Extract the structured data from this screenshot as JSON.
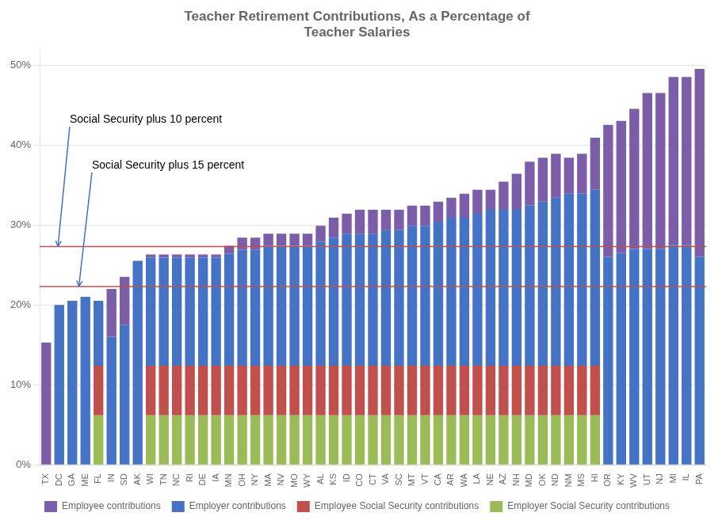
{
  "chart_data": {
    "type": "bar",
    "title": "Teacher Retirement Contributions, As a Percentage of\nTeacher Salaries",
    "categories": [
      "TX",
      "DC",
      "GA",
      "ME",
      "FL",
      "IN",
      "SD",
      "AK",
      "WI",
      "TN",
      "NC",
      "RI",
      "DE",
      "IA",
      "MN",
      "OH",
      "NY",
      "MA",
      "NV",
      "MO",
      "WY",
      "AL",
      "KS",
      "ID",
      "CO",
      "CT",
      "VA",
      "SC",
      "MT",
      "VT",
      "CA",
      "AR",
      "WA",
      "LA",
      "NE",
      "AZ",
      "NH",
      "MD",
      "OK",
      "ND",
      "NM",
      "MS",
      "HI",
      "OR",
      "KY",
      "WV",
      "UT",
      "NJ",
      "MI",
      "IL",
      "PA"
    ],
    "stacked": true,
    "series": [
      {
        "name": "Employer Social Security contributions",
        "color": "#9bbb59",
        "values": [
          0.0,
          0.0,
          0.0,
          0.0,
          6.2,
          0.0,
          0.0,
          0.0,
          6.2,
          6.2,
          6.2,
          6.2,
          6.2,
          6.2,
          6.2,
          6.2,
          6.2,
          6.2,
          6.2,
          6.2,
          6.2,
          6.2,
          6.2,
          6.2,
          6.2,
          6.2,
          6.2,
          6.2,
          6.2,
          6.2,
          6.2,
          6.2,
          6.2,
          6.2,
          6.2,
          6.2,
          6.2,
          6.2,
          6.2,
          6.2,
          6.2,
          6.2,
          6.2,
          0.0,
          0.0,
          0.0,
          0.0,
          0.0,
          0.0,
          0.0,
          0.0
        ]
      },
      {
        "name": "Employee Social Security contributions",
        "color": "#c0504d",
        "values": [
          0.0,
          0.0,
          0.0,
          0.0,
          6.2,
          0.0,
          0.0,
          0.0,
          6.2,
          6.2,
          6.2,
          6.2,
          6.2,
          6.2,
          6.2,
          6.2,
          6.2,
          6.2,
          6.2,
          6.2,
          6.2,
          6.2,
          6.2,
          6.2,
          6.2,
          6.2,
          6.2,
          6.2,
          6.2,
          6.2,
          6.2,
          6.2,
          6.2,
          6.2,
          6.2,
          6.2,
          6.2,
          6.2,
          6.2,
          6.2,
          6.2,
          6.2,
          6.2,
          0.0,
          0.0,
          0.0,
          0.0,
          0.0,
          0.0,
          0.0,
          0.0
        ]
      },
      {
        "name": "Employer contributions",
        "color": "#4472c4",
        "values": [
          0.0,
          20.0,
          20.5,
          21.0,
          8.1,
          16.0,
          17.5,
          25.5,
          13.5,
          13.5,
          13.5,
          13.5,
          13.5,
          13.5,
          14.0,
          14.5,
          14.5,
          15.0,
          15.0,
          15.0,
          15.0,
          15.5,
          16.0,
          16.5,
          16.5,
          16.5,
          17.0,
          17.0,
          17.5,
          17.5,
          18.0,
          18.5,
          18.5,
          19.0,
          19.5,
          19.5,
          19.5,
          20.0,
          20.5,
          21.0,
          21.5,
          21.5,
          22.0,
          26.0,
          26.5,
          27.0,
          27.0,
          27.0,
          27.5,
          27.5,
          26.0
        ]
      },
      {
        "name": "Employee contributions",
        "color": "#7b5ea7",
        "values": [
          15.3,
          0.0,
          0.0,
          0.0,
          0.0,
          6.0,
          6.0,
          0.0,
          0.4,
          0.4,
          0.4,
          0.4,
          0.4,
          0.4,
          1.0,
          1.5,
          1.5,
          1.5,
          1.5,
          1.5,
          1.5,
          2.0,
          2.5,
          2.5,
          3.0,
          3.0,
          2.5,
          2.5,
          2.5,
          2.5,
          2.5,
          2.5,
          3.0,
          3.0,
          2.5,
          3.5,
          4.5,
          5.5,
          5.5,
          5.5,
          4.5,
          5.0,
          6.5,
          16.5,
          16.5,
          17.5,
          19.5,
          19.5,
          21.0,
          21.0,
          23.5
        ]
      }
    ],
    "ylim": [
      0,
      52
    ],
    "yticks": [
      {
        "value": 0,
        "label": "0%"
      },
      {
        "value": 10,
        "label": "10%"
      },
      {
        "value": 20,
        "label": "20%"
      },
      {
        "value": 30,
        "label": "30%"
      },
      {
        "value": 40,
        "label": "40%"
      },
      {
        "value": 50,
        "label": "50%"
      }
    ],
    "grid": true,
    "legend": "bottom",
    "hlines": [
      {
        "value": 27.3,
        "color": "#c0504d"
      },
      {
        "value": 22.3,
        "color": "#c0504d"
      }
    ],
    "annotations": [
      "Social Security plus 10 percent",
      "Social Security plus 15 percent"
    ]
  }
}
